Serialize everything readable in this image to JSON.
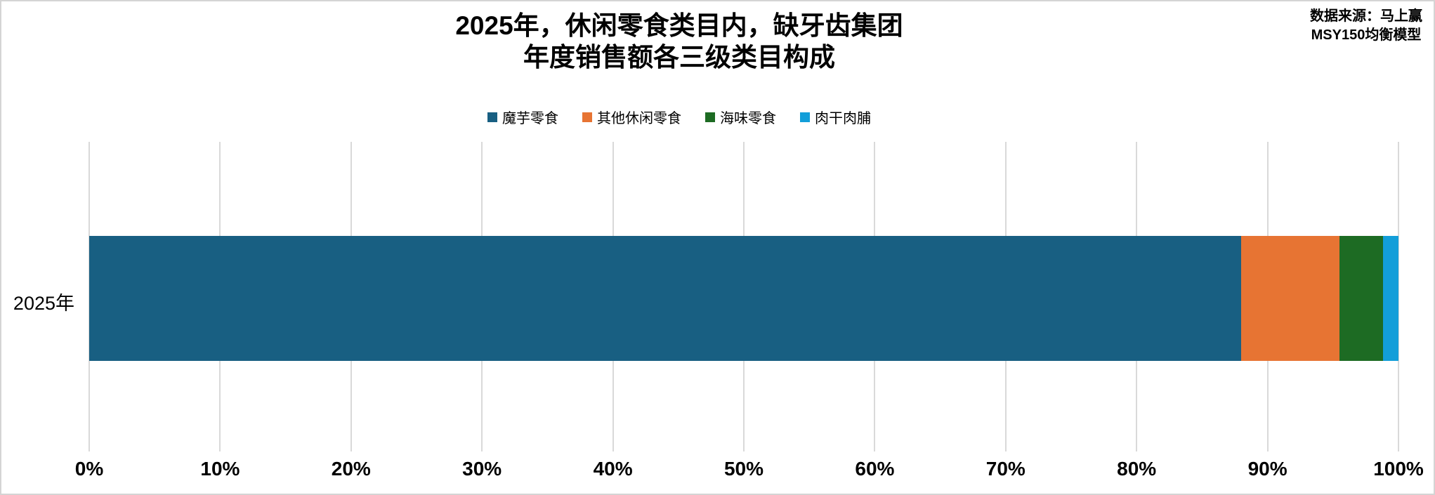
{
  "title": {
    "line1": "2025年，休闲零食类目内，缺牙齿集团",
    "line2": "年度销售额各三级类目构成"
  },
  "source": {
    "line1": "数据来源：马上赢",
    "line2": "MSY150均衡模型"
  },
  "colors": {
    "background": "#ffffff",
    "border": "#d4d4d4",
    "gridline": "#d9d9d9",
    "text": "#000000"
  },
  "chart_data": {
    "type": "bar",
    "orientation": "horizontal",
    "stacked": true,
    "title": "2025年，休闲零食类目内，缺牙齿集团 年度销售额各三级类目构成",
    "categories": [
      "2025年"
    ],
    "series": [
      {
        "name": "魔芋零食",
        "color": "#185F82",
        "values": [
          88.0
        ]
      },
      {
        "name": "其他休闲零食",
        "color": "#E77433",
        "values": [
          7.5
        ]
      },
      {
        "name": "海味零食",
        "color": "#1D6B23",
        "values": [
          3.3
        ]
      },
      {
        "name": "肉干肉脯",
        "color": "#129ED9",
        "values": [
          1.2
        ]
      }
    ],
    "xlabel": "",
    "ylabel": "",
    "xlim": [
      0,
      100
    ],
    "x_ticks": [
      "0%",
      "10%",
      "20%",
      "30%",
      "40%",
      "50%",
      "60%",
      "70%",
      "80%",
      "90%",
      "100%"
    ],
    "grid": true,
    "legend_position": "top"
  }
}
